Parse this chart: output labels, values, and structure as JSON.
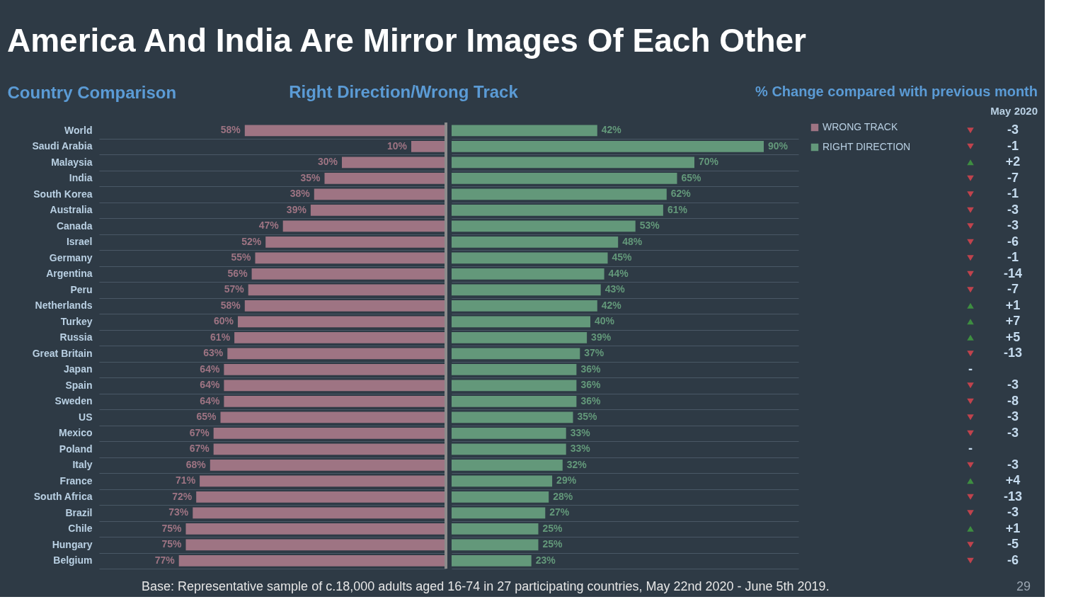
{
  "chart_data": [
    {
      "type": "bar",
      "orientation": "horizontal",
      "title": "America And India Are Mirror Images Of Each Other",
      "subtitle": "Right Direction/Wrong Track",
      "ylabel": "Country Comparison",
      "categories": [
        "World",
        "Saudi Arabia",
        "Malaysia",
        "India",
        "South Korea",
        "Australia",
        "Canada",
        "Israel",
        "Germany",
        "Argentina",
        "Peru",
        "Netherlands",
        "Turkey",
        "Russia",
        "Great Britain",
        "Japan",
        "Spain",
        "Sweden",
        "US",
        "Mexico",
        "Poland",
        "Italy",
        "France",
        "South Africa",
        "Brazil",
        "Chile",
        "Hungary",
        "Belgium"
      ],
      "series": [
        {
          "name": "WRONG TRACK",
          "color": "#9e7483",
          "values": [
            58,
            10,
            30,
            35,
            38,
            39,
            47,
            52,
            55,
            56,
            57,
            58,
            60,
            61,
            63,
            64,
            64,
            64,
            65,
            67,
            67,
            68,
            71,
            72,
            73,
            75,
            75,
            77
          ],
          "value_labels": [
            "58%",
            "10%",
            "30%",
            "35%",
            "38%",
            "39%",
            "47%",
            "52%",
            "55%",
            "56%",
            "57%",
            "58%",
            "60%",
            "61%",
            "63%",
            "64%",
            "64%",
            "64%",
            "65%",
            "67%",
            "67%",
            "68%",
            "71%",
            "72%",
            "73%",
            "75%",
            "75%",
            "77%"
          ]
        }
      ],
      "xlim": [
        100,
        0
      ],
      "grid": "y",
      "tick_labels": "y",
      "ref_lines": [
        {
          "axis": "x",
          "value": 0,
          "color": "#8c8c8c"
        }
      ],
      "annotations": [
        "Base: Representative sample of c.18,000 adults aged 16-74 in 27 participating countries, May 22nd 2020 - June 5th 2019."
      ]
    },
    {
      "type": "bar",
      "orientation": "horizontal",
      "categories": [
        null,
        null,
        null,
        null,
        null,
        null,
        null,
        null,
        null,
        null,
        null,
        null,
        null,
        null,
        null,
        null,
        null,
        null,
        null,
        null,
        null,
        null,
        null,
        null,
        null,
        null,
        null,
        null
      ],
      "series": [
        {
          "name": "RIGHT DIRECTION",
          "color": "#63987a",
          "values": [
            42,
            90,
            70,
            65,
            62,
            61,
            53,
            48,
            45,
            44,
            43,
            42,
            40,
            39,
            37,
            36,
            36,
            36,
            35,
            33,
            33,
            32,
            29,
            28,
            27,
            25,
            25,
            23
          ],
          "value_labels": [
            "42%",
            "90%",
            "70%",
            "65%",
            "62%",
            "61%",
            "53%",
            "48%",
            "45%",
            "44%",
            "43%",
            "42%",
            "40%",
            "39%",
            "37%",
            "36%",
            "36%",
            "36%",
            "35%",
            "33%",
            "33%",
            "32%",
            "29%",
            "28%",
            "27%",
            "25%",
            "25%",
            "23%"
          ]
        }
      ],
      "xlim": [
        0,
        100
      ],
      "grid": "y",
      "tick_labels": false,
      "legend": "right"
    },
    {
      "type": "other",
      "title": "% Change compared with previous month",
      "subtitle": "May 2020",
      "categories": [
        null,
        null,
        null,
        null,
        null,
        null,
        null,
        null,
        null,
        null,
        null,
        null,
        null,
        null,
        null,
        null,
        null,
        null,
        null,
        null,
        null,
        null,
        null,
        null,
        null,
        null,
        null,
        null
      ],
      "series": [
        {
          "values": [
            -3,
            -1,
            2,
            -7,
            -1,
            -3,
            -3,
            -6,
            -1,
            -14,
            -7,
            1,
            7,
            5,
            -13,
            0,
            -3,
            -8,
            -3,
            -3,
            0,
            -3,
            4,
            -13,
            -3,
            1,
            -5,
            -6
          ],
          "value_labels": [
            "-3",
            "-1",
            "+2",
            "-7",
            "-1",
            "-3",
            "-3",
            "-6",
            "-1",
            "-14",
            "-7",
            "+1",
            "+7",
            "+5",
            "-13",
            "-",
            "-3",
            "-8",
            "-3",
            "-3",
            "-",
            "-3",
            "+4",
            "-13",
            "-3",
            "+1",
            "-5",
            "-6"
          ]
        }
      ],
      "colors": [
        "#c0434d",
        "#c0434d",
        "#3e8e41",
        "#c0434d",
        "#c0434d",
        "#c0434d",
        "#c0434d",
        "#c0434d",
        "#c0434d",
        "#c0434d",
        "#c0434d",
        "#3e8e41",
        "#3e8e41",
        "#3e8e41",
        "#c0434d",
        null,
        "#c0434d",
        "#c0434d",
        "#c0434d",
        "#c0434d",
        null,
        "#c0434d",
        "#3e8e41",
        "#c0434d",
        "#c0434d",
        "#3e8e41",
        "#c0434d",
        "#c0434d"
      ],
      "annotations": [
        "29"
      ]
    }
  ]
}
